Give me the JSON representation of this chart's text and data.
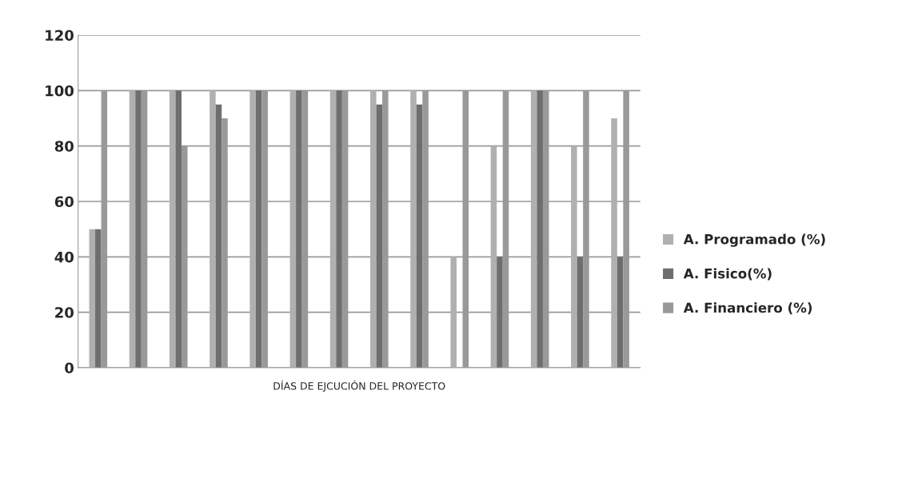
{
  "chart_data": {
    "type": "bar",
    "xlabel": "DÍAS DE EJCUCIÓN DEL PROYECTO",
    "categories": [
      null,
      null,
      null,
      null,
      null,
      null,
      null,
      null,
      null,
      null,
      null,
      null,
      null,
      null
    ],
    "series": [
      {
        "name": "A. Programado (%)",
        "color": "#b0b0b0",
        "values": [
          50,
          100,
          100,
          100,
          100,
          100,
          100,
          100,
          100,
          40,
          80,
          100,
          80,
          90
        ]
      },
      {
        "name": "A. Fisico(%)",
        "color": "#6e6e6e",
        "values": [
          50,
          100,
          100,
          95,
          100,
          100,
          100,
          95,
          95,
          0,
          40,
          100,
          40,
          40
        ]
      },
      {
        "name": "A. Financiero (%)",
        "color": "#999999",
        "values": [
          100,
          100,
          80,
          90,
          100,
          100,
          100,
          100,
          100,
          100,
          100,
          100,
          100,
          100
        ]
      }
    ],
    "ylim": [
      0,
      120
    ],
    "yticks": [
      0,
      20,
      40,
      60,
      80,
      100,
      120
    ],
    "grid": "y",
    "legend": "right"
  }
}
